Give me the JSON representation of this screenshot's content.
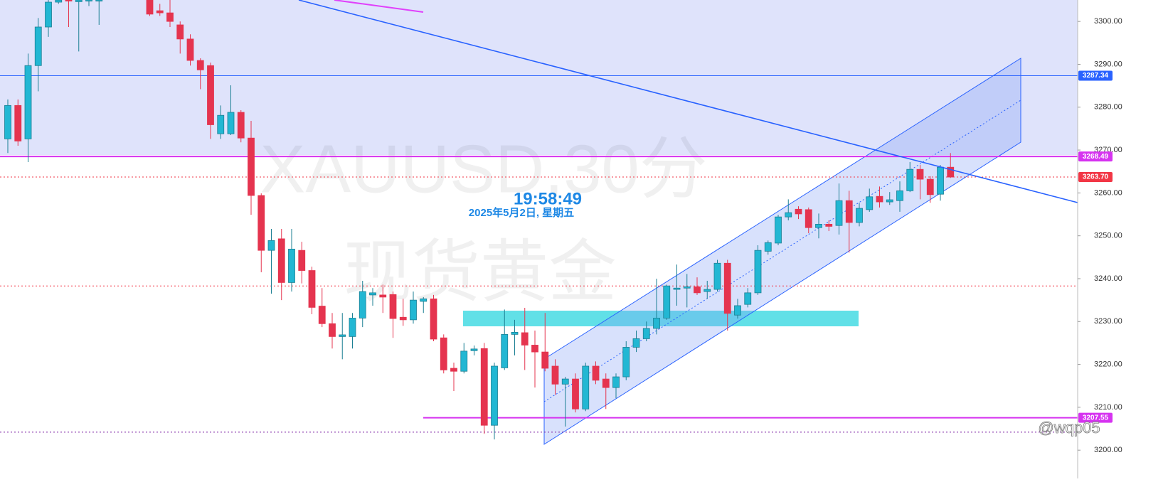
{
  "chart_data": {
    "type": "candlestick",
    "watermark": [
      "XAUUSD,30分",
      "现货黄金"
    ],
    "time": "19:58:49",
    "date": "2025年5月2日, 星期五",
    "signature": "@wqp05",
    "up_color": "#22b7d3",
    "down_color": "#e5344f",
    "open": [
      3272.6,
      3280.4,
      3272.6,
      3289.7,
      3298.7,
      3304.5,
      3305.0,
      3304.6,
      3305.0,
      3305.0,
      null,
      null,
      null,
      null,
      3305.0,
      3302.5,
      3302.0,
      3299.2,
      3295.9,
      3290.9,
      3289.7,
      3273.8,
      3273.8,
      3278.8,
      3272.8,
      3259.4,
      3246.6,
      3249.3,
      3239.1,
      3246.6,
      3241.9,
      3233.6,
      3229.5,
      3226.5,
      3226.5,
      3230.8,
      3236.2,
      3236.2,
      3236.3,
      3231.0,
      3230.4,
      3234.7,
      3235.3,
      3226.2,
      3219.1,
      3218.4,
      3223.2,
      3223.7,
      3205.8,
      3219.2,
      3227.0,
      3227.4,
      3224.5,
      3222.9,
      3219.6,
      3215.4,
      3216.6,
      3209.6,
      3219.6,
      3216.6,
      3214.6,
      3217.1,
      3224.0,
      3226.0,
      3228.4,
      3230.8,
      3237.5,
      3237.8,
      3238.1,
      3237.0,
      3237.5,
      3243.6,
      3231.5,
      3234.0,
      3236.7,
      3246.4,
      3248.3,
      3254.4,
      3256.2,
      3256.1,
      3251.9,
      3252.7,
      3252.4,
      3258.2,
      3253.1,
      3256.1,
      3259.2,
      3257.9,
      3258.2,
      3260.5,
      3265.5,
      3263.2,
      3259.7,
      3266.0
    ],
    "high": [
      3281.8,
      3281.8,
      3292.5,
      3300.8,
      3305.0,
      3305.0,
      3305.0,
      3305.0,
      3305.0,
      3305.0,
      null,
      null,
      null,
      null,
      3305.0,
      3304.1,
      3305.0,
      3300.0,
      3297.0,
      3291.4,
      3290.4,
      3280.4,
      3285.1,
      3279.3,
      3276.8,
      3259.9,
      3251.6,
      3251.6,
      3251.6,
      3248.6,
      3242.8,
      3237.8,
      3232.0,
      3232.0,
      3232.0,
      3239.5,
      3237.8,
      3238.6,
      3237.0,
      3235.3,
      3237.0,
      3235.7,
      3236.2,
      3227.0,
      3220.4,
      3225.0,
      3224.4,
      3225.0,
      3220.4,
      3232.8,
      3230.4,
      3233.2,
      3227.9,
      3232.0,
      3221.2,
      3217.1,
      3217.9,
      3220.4,
      3220.7,
      3217.9,
      3217.9,
      3225.4,
      3227.9,
      3230.0,
      3240.0,
      3238.6,
      3243.3,
      3241.1,
      3240.3,
      3239.5,
      3244.4,
      3244.4,
      3235.3,
      3237.8,
      3247.8,
      3248.9,
      3254.9,
      3258.5,
      3256.9,
      3256.6,
      3255.2,
      3253.6,
      3262.2,
      3260.5,
      3257.7,
      3261.0,
      3261.5,
      3260.2,
      3262.7,
      3267.2,
      3266.5,
      3263.9,
      3266.5,
      3269.3
    ],
    "low": [
      3269.3,
      3271.0,
      3267.2,
      3283.7,
      3296.4,
      3304.1,
      3298.7,
      3293.0,
      3303.6,
      3299.2,
      null,
      null,
      null,
      null,
      3301.3,
      3301.3,
      3298.7,
      3292.5,
      3289.7,
      3284.2,
      3272.6,
      3272.6,
      3273.5,
      3271.8,
      3254.9,
      3241.5,
      3236.5,
      3235.0,
      3237.0,
      3238.9,
      3231.7,
      3228.7,
      3223.7,
      3221.2,
      3223.7,
      3228.7,
      3233.7,
      3232.0,
      3226.2,
      3229.0,
      3229.5,
      3232.0,
      3225.4,
      3217.9,
      3213.8,
      3217.9,
      3222.1,
      3203.8,
      3202.5,
      3218.7,
      3222.1,
      3218.7,
      3214.6,
      3218.4,
      3212.9,
      3205.5,
      3208.8,
      3209.1,
      3215.4,
      3209.6,
      3212.1,
      3216.3,
      3222.9,
      3225.4,
      3227.0,
      3230.4,
      3233.7,
      3233.3,
      3236.2,
      3235.3,
      3237.0,
      3227.9,
      3230.7,
      3233.3,
      3236.2,
      3245.6,
      3247.8,
      3253.6,
      3253.9,
      3250.6,
      3249.4,
      3251.1,
      3250.3,
      3246.1,
      3252.2,
      3255.6,
      3256.6,
      3257.2,
      3255.6,
      3260.2,
      3258.5,
      3257.7,
      3258.2,
      3263.5
    ],
    "close": [
      3280.4,
      3272.1,
      3289.7,
      3298.7,
      3304.5,
      3305.0,
      3304.8,
      3305.0,
      3305.0,
      3305.0,
      null,
      null,
      null,
      null,
      3301.7,
      3302.0,
      3300.0,
      3295.9,
      3290.9,
      3288.7,
      3275.9,
      3278.1,
      3278.8,
      3272.8,
      3259.4,
      3246.6,
      3248.9,
      3239.1,
      3246.9,
      3241.9,
      3233.3,
      3229.5,
      3226.5,
      3226.9,
      3230.8,
      3237.0,
      3236.7,
      3235.7,
      3230.7,
      3230.4,
      3235.0,
      3235.3,
      3225.9,
      3218.7,
      3218.4,
      3223.1,
      3223.6,
      3205.8,
      3219.6,
      3227.0,
      3227.5,
      3224.5,
      3222.9,
      3219.1,
      3215.4,
      3216.6,
      3209.6,
      3219.6,
      3216.3,
      3214.6,
      3217.1,
      3224.0,
      3226.0,
      3228.4,
      3230.8,
      3238.3,
      3237.8,
      3238.1,
      3236.7,
      3237.5,
      3243.6,
      3231.9,
      3233.7,
      3236.7,
      3246.6,
      3248.4,
      3254.4,
      3255.4,
      3255.1,
      3251.9,
      3252.7,
      3252.2,
      3258.2,
      3253.1,
      3256.4,
      3259.1,
      3257.9,
      3258.4,
      3260.5,
      3265.5,
      3263.2,
      3259.6,
      3266.0,
      3263.7
    ],
    "ylim": [
      3193.4,
      3305.0
    ],
    "yticks": [
      {
        "value": 3200,
        "label": "3200.00"
      },
      {
        "value": 3210,
        "label": "3210.00"
      },
      {
        "value": 3220,
        "label": "3220.00"
      },
      {
        "value": 3230,
        "label": "3230.00"
      },
      {
        "value": 3240,
        "label": "3240.00"
      },
      {
        "value": 3250,
        "label": "3250.00"
      },
      {
        "value": 3260,
        "label": "3260.00"
      },
      {
        "value": 3270,
        "label": "3270.00"
      },
      {
        "value": 3280,
        "label": "3280.00"
      },
      {
        "value": 3290,
        "label": "3290.00"
      },
      {
        "value": 3300,
        "label": "3300.00"
      }
    ],
    "price_lines": [
      {
        "value": 3287.34,
        "color": "#2962ff",
        "style": "solid"
      },
      {
        "value": 3268.49,
        "color": "#d633f0",
        "style": "thick"
      },
      {
        "value": 3263.7,
        "label": "3263.70",
        "color": "#f23645",
        "style": "dotted"
      },
      {
        "value": 3207.55,
        "color": "#d633f0",
        "style": "partial"
      }
    ],
    "levels": [
      {
        "value": 3238.3,
        "color": "#f23645"
      },
      {
        "value": 3204.2,
        "color": "#7b1fa2"
      }
    ]
  }
}
